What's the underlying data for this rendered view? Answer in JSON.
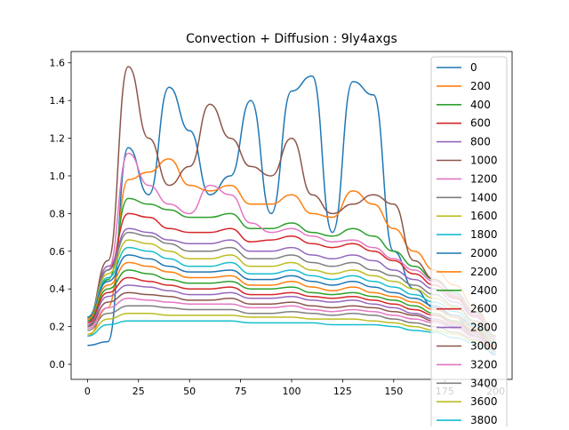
{
  "chart_data": {
    "type": "line",
    "title": "Convection + Diffusion : 9ly4axgs",
    "xlabel": "",
    "ylabel": "",
    "xlim": [
      -8,
      208
    ],
    "ylim": [
      -0.08,
      1.66
    ],
    "xticks": [
      0,
      25,
      50,
      75,
      100,
      125,
      150,
      175,
      200
    ],
    "yticks": [
      0.0,
      0.2,
      0.4,
      0.6,
      0.8,
      1.0,
      1.2,
      1.4,
      1.6
    ],
    "grid": false,
    "legend_position": "upper-right",
    "legend": [
      "0",
      "200",
      "400",
      "600",
      "800",
      "1000",
      "1200",
      "1400",
      "1600",
      "1800",
      "2000",
      "2200",
      "2400",
      "2600",
      "2800",
      "3000",
      "3200",
      "3400",
      "3600",
      "3800"
    ],
    "palette": [
      "#1f77b4",
      "#ff7f0e",
      "#2ca02c",
      "#d62728",
      "#9467bd",
      "#8c564b",
      "#e377c2",
      "#7f7f7f",
      "#bcbd22",
      "#17becf"
    ],
    "x": [
      0,
      10,
      20,
      30,
      40,
      50,
      60,
      70,
      80,
      90,
      100,
      110,
      120,
      130,
      140,
      150,
      160,
      170,
      180,
      190,
      200
    ],
    "series": [
      {
        "name": "0",
        "values": [
          0.1,
          0.12,
          1.15,
          0.9,
          1.47,
          1.24,
          0.9,
          1.0,
          1.4,
          0.8,
          1.45,
          1.53,
          0.7,
          1.5,
          1.43,
          0.6,
          0.4,
          0.3,
          0.25,
          0.15,
          0.05
        ]
      },
      {
        "name": "200",
        "values": [
          0.15,
          0.3,
          0.98,
          1.02,
          1.09,
          0.95,
          0.92,
          0.95,
          0.85,
          0.85,
          0.9,
          0.8,
          0.78,
          0.92,
          0.85,
          0.72,
          0.6,
          0.5,
          0.42,
          0.3,
          0.15
        ]
      },
      {
        "name": "400",
        "values": [
          0.2,
          0.45,
          0.88,
          0.85,
          0.82,
          0.78,
          0.78,
          0.8,
          0.72,
          0.72,
          0.75,
          0.7,
          0.68,
          0.72,
          0.68,
          0.6,
          0.52,
          0.45,
          0.38,
          0.28,
          0.15
        ]
      },
      {
        "name": "600",
        "values": [
          0.22,
          0.5,
          0.8,
          0.78,
          0.72,
          0.7,
          0.7,
          0.72,
          0.65,
          0.66,
          0.68,
          0.64,
          0.62,
          0.64,
          0.6,
          0.55,
          0.48,
          0.42,
          0.35,
          0.26,
          0.14
        ]
      },
      {
        "name": "800",
        "values": [
          0.23,
          0.52,
          0.72,
          0.7,
          0.66,
          0.64,
          0.64,
          0.66,
          0.6,
          0.6,
          0.62,
          0.58,
          0.56,
          0.58,
          0.55,
          0.5,
          0.45,
          0.4,
          0.33,
          0.25,
          0.13
        ]
      },
      {
        "name": "1000",
        "values": [
          0.24,
          0.55,
          1.58,
          1.2,
          0.95,
          1.05,
          1.38,
          1.2,
          1.05,
          1.0,
          1.2,
          0.9,
          0.8,
          0.85,
          0.9,
          0.85,
          0.55,
          0.45,
          0.36,
          0.27,
          0.14
        ]
      },
      {
        "name": "1200",
        "values": [
          0.24,
          0.5,
          1.12,
          0.95,
          0.85,
          0.8,
          0.95,
          0.9,
          0.75,
          0.7,
          0.72,
          0.68,
          0.65,
          0.66,
          0.62,
          0.56,
          0.5,
          0.44,
          0.37,
          0.27,
          0.14
        ]
      },
      {
        "name": "1400",
        "values": [
          0.25,
          0.5,
          0.7,
          0.68,
          0.64,
          0.6,
          0.6,
          0.62,
          0.56,
          0.56,
          0.58,
          0.54,
          0.52,
          0.54,
          0.5,
          0.47,
          0.42,
          0.37,
          0.31,
          0.23,
          0.12
        ]
      },
      {
        "name": "1600",
        "values": [
          0.25,
          0.48,
          0.66,
          0.64,
          0.6,
          0.56,
          0.56,
          0.58,
          0.52,
          0.52,
          0.54,
          0.5,
          0.48,
          0.5,
          0.47,
          0.44,
          0.4,
          0.35,
          0.3,
          0.22,
          0.12
        ]
      },
      {
        "name": "1800",
        "values": [
          0.25,
          0.46,
          0.62,
          0.6,
          0.56,
          0.52,
          0.52,
          0.54,
          0.48,
          0.48,
          0.5,
          0.47,
          0.45,
          0.47,
          0.44,
          0.41,
          0.37,
          0.33,
          0.28,
          0.21,
          0.11
        ]
      },
      {
        "name": "2000",
        "values": [
          0.25,
          0.44,
          0.58,
          0.56,
          0.52,
          0.49,
          0.49,
          0.5,
          0.45,
          0.45,
          0.47,
          0.44,
          0.42,
          0.44,
          0.41,
          0.38,
          0.35,
          0.31,
          0.26,
          0.2,
          0.1
        ]
      },
      {
        "name": "2200",
        "values": [
          0.24,
          0.42,
          0.54,
          0.52,
          0.49,
          0.46,
          0.46,
          0.47,
          0.42,
          0.42,
          0.44,
          0.41,
          0.39,
          0.41,
          0.38,
          0.36,
          0.33,
          0.29,
          0.25,
          0.19,
          0.1
        ]
      },
      {
        "name": "2400",
        "values": [
          0.23,
          0.4,
          0.5,
          0.48,
          0.45,
          0.43,
          0.43,
          0.44,
          0.4,
          0.4,
          0.41,
          0.38,
          0.37,
          0.38,
          0.36,
          0.34,
          0.31,
          0.27,
          0.23,
          0.18,
          0.09
        ]
      },
      {
        "name": "2600",
        "values": [
          0.22,
          0.38,
          0.46,
          0.44,
          0.42,
          0.4,
          0.4,
          0.41,
          0.37,
          0.37,
          0.38,
          0.36,
          0.35,
          0.36,
          0.34,
          0.32,
          0.29,
          0.26,
          0.22,
          0.17,
          0.09
        ]
      },
      {
        "name": "2800",
        "values": [
          0.21,
          0.36,
          0.42,
          0.41,
          0.39,
          0.37,
          0.37,
          0.38,
          0.35,
          0.35,
          0.36,
          0.34,
          0.33,
          0.34,
          0.32,
          0.3,
          0.27,
          0.24,
          0.21,
          0.16,
          0.08
        ]
      },
      {
        "name": "3000",
        "values": [
          0.2,
          0.33,
          0.38,
          0.37,
          0.36,
          0.34,
          0.34,
          0.35,
          0.32,
          0.32,
          0.33,
          0.31,
          0.3,
          0.31,
          0.3,
          0.28,
          0.26,
          0.23,
          0.2,
          0.15,
          0.08
        ]
      },
      {
        "name": "3200",
        "values": [
          0.19,
          0.3,
          0.35,
          0.34,
          0.33,
          0.32,
          0.32,
          0.32,
          0.3,
          0.3,
          0.31,
          0.29,
          0.28,
          0.29,
          0.28,
          0.26,
          0.24,
          0.22,
          0.19,
          0.14,
          0.07
        ]
      },
      {
        "name": "3400",
        "values": [
          0.18,
          0.27,
          0.31,
          0.31,
          0.3,
          0.29,
          0.29,
          0.29,
          0.27,
          0.27,
          0.28,
          0.27,
          0.26,
          0.27,
          0.26,
          0.24,
          0.22,
          0.2,
          0.17,
          0.13,
          0.07
        ]
      },
      {
        "name": "3600",
        "values": [
          0.16,
          0.24,
          0.27,
          0.27,
          0.26,
          0.26,
          0.26,
          0.26,
          0.25,
          0.25,
          0.25,
          0.24,
          0.24,
          0.24,
          0.23,
          0.22,
          0.2,
          0.18,
          0.16,
          0.12,
          0.06
        ]
      },
      {
        "name": "3800",
        "values": [
          0.15,
          0.21,
          0.23,
          0.23,
          0.23,
          0.23,
          0.23,
          0.23,
          0.22,
          0.22,
          0.22,
          0.22,
          0.21,
          0.21,
          0.21,
          0.2,
          0.18,
          0.17,
          0.14,
          0.11,
          0.06
        ]
      }
    ]
  }
}
